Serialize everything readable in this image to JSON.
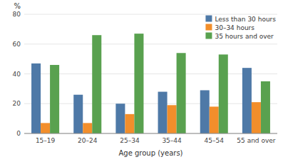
{
  "chart_data": {
    "type": "bar",
    "xlabel": "Age group (years)",
    "ylabel": "%",
    "categories": [
      "15–19",
      "20–24",
      "25–34",
      "35–44",
      "45–54",
      "55 and over"
    ],
    "series": [
      {
        "name": "Less than 30 hours",
        "values": [
          47,
          26,
          20,
          28,
          29,
          44
        ]
      },
      {
        "name": "30–34 hours",
        "values": [
          7,
          7,
          13,
          19,
          18,
          21
        ]
      },
      {
        "name": "35 hours and over",
        "values": [
          46,
          66,
          67,
          54,
          53,
          35
        ]
      }
    ],
    "ylim": [
      0,
      80
    ],
    "yticks": [
      0,
      20,
      40,
      60,
      80
    ],
    "legend": "upper right"
  }
}
